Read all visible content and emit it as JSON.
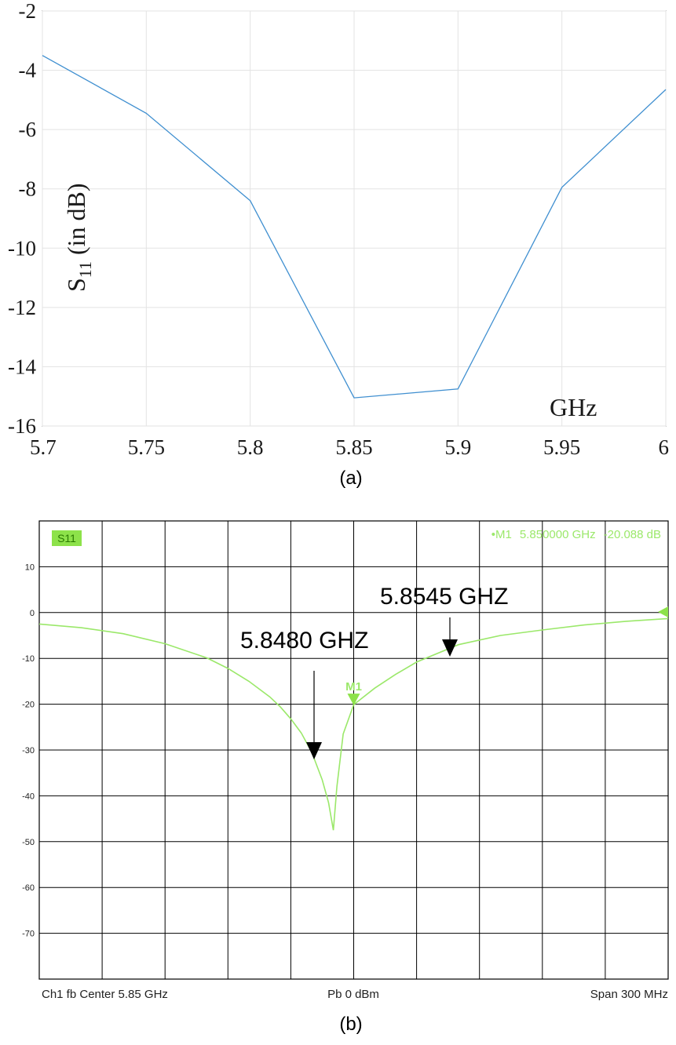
{
  "chart_data": [
    {
      "type": "line",
      "panel_caption": "(a)",
      "xlabel": "GHz",
      "ylabel": "S",
      "ylabel_subscript": "11",
      "ylabel_suffix": "(in dB)",
      "xlim": [
        5.7,
        6.0
      ],
      "ylim": [
        -16,
        -2
      ],
      "x_ticks": [
        "5.7",
        "5.75",
        "5.8",
        "5.85",
        "5.9",
        "5.95",
        "6"
      ],
      "y_ticks": [
        "-2",
        "-4",
        "-6",
        "-8",
        "-10",
        "-12",
        "-14",
        "-16"
      ],
      "grid": true,
      "series": [
        {
          "color": "#3f8fd0",
          "x": [
            5.7,
            5.75,
            5.8,
            5.85,
            5.9,
            5.95,
            6.0
          ],
          "y": [
            -3.5,
            -5.45,
            -8.4,
            -15.05,
            -14.75,
            -7.95,
            -4.65
          ]
        }
      ]
    },
    {
      "type": "line",
      "panel_caption": "(b)",
      "trace_label": "S11",
      "ylim": [
        -80,
        20
      ],
      "xlim": [
        5.7,
        6.0
      ],
      "y_ticks": [
        "10",
        "0",
        "-10",
        "-20",
        "-30",
        "-40",
        "-50",
        "-60",
        "-70"
      ],
      "grid": true,
      "marker_readout": {
        "prefix": "•M1",
        "frequency": "5.850000 GHz",
        "value": "-20.088 dB"
      },
      "marker_label": "M1",
      "footer": {
        "left": "Ch1  fb  Center  5.85 GHz",
        "center": "Pb    0 dBm",
        "right": "Span  300 MHz"
      },
      "annotations": [
        {
          "text": "5.8480 GHZ",
          "x": 5.848,
          "y": -30
        },
        {
          "text": "5.8545 GHZ",
          "x": 5.8545,
          "y": -10
        }
      ],
      "series": [
        {
          "color": "#9be86a",
          "x": [
            5.7,
            5.72,
            5.74,
            5.76,
            5.78,
            5.79,
            5.8,
            5.81,
            5.815,
            5.82,
            5.825,
            5.83,
            5.835,
            5.838,
            5.8403,
            5.842,
            5.845,
            5.85,
            5.86,
            5.87,
            5.88,
            5.9,
            5.92,
            5.94,
            5.96,
            5.98,
            6.0
          ],
          "y": [
            -2.5,
            -3.3,
            -4.6,
            -6.8,
            -9.9,
            -12.2,
            -15.0,
            -18.4,
            -20.6,
            -23.2,
            -26.3,
            -30.5,
            -36.5,
            -41.5,
            -47.5,
            -38.0,
            -26.5,
            -20.1,
            -16.5,
            -13.5,
            -10.8,
            -7.0,
            -5.0,
            -3.8,
            -2.7,
            -1.9,
            -1.3
          ]
        }
      ]
    }
  ],
  "icons": [
    "arrow-down-icon",
    "marker-triangle-icon"
  ]
}
